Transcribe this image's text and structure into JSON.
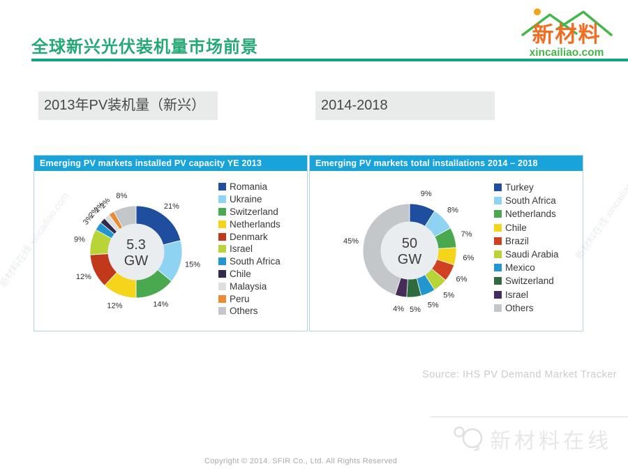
{
  "page": {
    "title": "全球新兴光伏装机量市场前景",
    "label_box_left": "2013年PV装机量（新兴）",
    "label_box_right": "2014-2018",
    "source": "Source: IHS PV Demand Market Tracker",
    "copyright": "Copyright © 2014. SFIR Co., Ltd. All Rights Reserved"
  },
  "logo": {
    "name": "新材料",
    "domain": "xincailiao.com"
  },
  "footer_logo": {
    "text": "新材料在线"
  },
  "watermark": {
    "text": "新材料在线 xincailiao.com"
  },
  "colors": {
    "title_green": "#25a875",
    "underline_teal": "#12a384",
    "panel_header_blue": "#18a4da",
    "panel_border": "#b2d4da",
    "label_box_bg": "#e9ebeb",
    "logo_orange": "#f26d21",
    "logo_green": "#45b649",
    "donut_hole_gray": "#e9edef"
  },
  "chart_data": [
    {
      "type": "pie",
      "donut": true,
      "title": "Emerging PV markets installed PV capacity YE 2013",
      "center": {
        "value": "5.3",
        "unit": "GW"
      },
      "categories": [
        "Romania",
        "Ukraine",
        "Switzerland",
        "Netherlands",
        "Denmark",
        "Israel",
        "South Africa",
        "Chile",
        "Malaysia",
        "Peru",
        "Others"
      ],
      "values": [
        21,
        15,
        14,
        12,
        12,
        9,
        3,
        2,
        2,
        2,
        8
      ],
      "colors": [
        "#1f4e9e",
        "#8ed3f2",
        "#4aa84e",
        "#f5d41c",
        "#c0391b",
        "#b9d437",
        "#2196cf",
        "#332a4e",
        "#dcdee0",
        "#ec8b35",
        "#c3c7ca"
      ],
      "legend_position": "right",
      "rotate_small_labels": true
    },
    {
      "type": "pie",
      "donut": true,
      "title": "Emerging PV markets total installations 2014 – 2018",
      "center": {
        "value": "50",
        "unit": "GW"
      },
      "categories": [
        "Turkey",
        "South Africa",
        "Netherlands",
        "Chile",
        "Brazil",
        "Saudi Arabia",
        "Mexico",
        "Switzerland",
        "Israel",
        "Others"
      ],
      "values": [
        9,
        8,
        7,
        6,
        6,
        5,
        5,
        5,
        4,
        45
      ],
      "colors": [
        "#1f4e9e",
        "#8ed3f2",
        "#4aa84e",
        "#f5d41c",
        "#d04122",
        "#b9d437",
        "#2196cf",
        "#2e6b3e",
        "#462c59",
        "#c3c7ca"
      ],
      "legend_position": "right",
      "rotate_small_labels": false
    }
  ]
}
